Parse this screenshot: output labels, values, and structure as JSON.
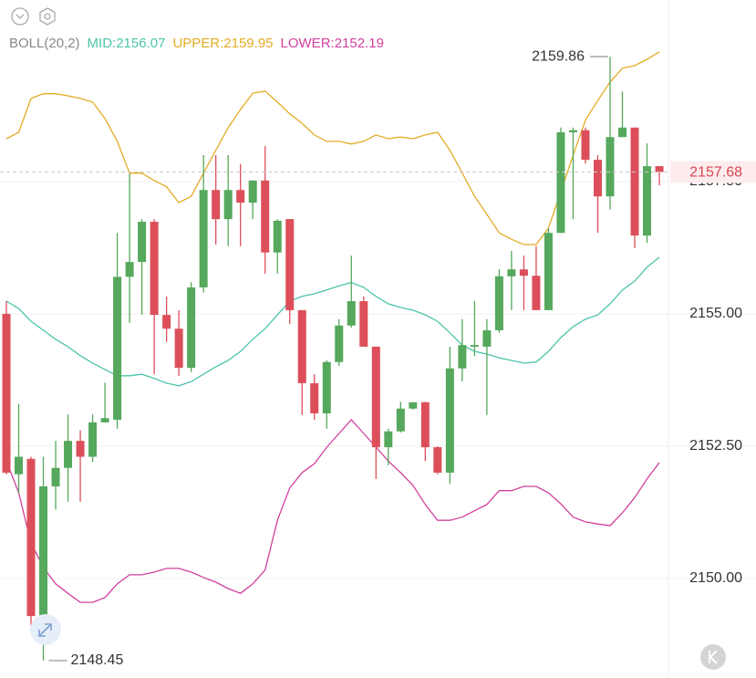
{
  "chart_data": {
    "type": "candlestick",
    "indicator": "BOLL(20,2)",
    "ylim": [
      2148.12,
      2160.93
    ],
    "yticks": [
      {
        "value": 2150,
        "label": "2150.00"
      },
      {
        "value": 2152.5,
        "label": "2152.50"
      },
      {
        "value": 2155,
        "label": "2155.00"
      },
      {
        "value": 2157.5,
        "label": "2157.50"
      }
    ],
    "grid": true,
    "up_color": "#55a85c",
    "down_color": "#dc4f5a",
    "open": [
      2155.0,
      2151.97,
      2152.26,
      2149.29,
      2151.74,
      2152.09,
      2152.6,
      2152.3,
      2152.95,
      2153.0,
      2155.7,
      2155.98,
      2156.74,
      2154.98,
      2154.72,
      2153.98,
      2155.5,
      2157.34,
      2156.79,
      2157.34,
      2157.1,
      2157.52,
      2156.16,
      2156.79,
      2155.07,
      2153.69,
      2153.12,
      2154.09,
      2154.78,
      2155.24,
      2154.38,
      2152.48,
      2152.78,
      2153.21,
      2153.33,
      2152.48,
      2152.0,
      2153.97,
      2154.38,
      2154.38,
      2154.69,
      2155.71,
      2155.84,
      2155.72,
      2155.07,
      2156.53,
      2158.43,
      2158.47,
      2157.91,
      2157.22,
      2158.34,
      2158.52,
      2156.48,
      2157.79
    ],
    "high": [
      2155.24,
      2153.3,
      2152.3,
      2152.3,
      2152.6,
      2153.1,
      2152.8,
      2153.1,
      2153.7,
      2156.53,
      2157.65,
      2156.79,
      2156.79,
      2155.33,
      2155.07,
      2155.6,
      2158.0,
      2158.0,
      2158.0,
      2157.83,
      2157.52,
      2158.17,
      2156.79,
      2156.79,
      2155.07,
      2153.86,
      2154.12,
      2154.9,
      2156.1,
      2155.33,
      2154.38,
      2152.83,
      2153.34,
      2153.33,
      2153.34,
      2152.5,
      2154.38,
      2154.9,
      2155.24,
      2154.9,
      2155.84,
      2156.19,
      2156.1,
      2156.28,
      2156.62,
      2158.52,
      2158.52,
      2158.52,
      2158.0,
      2159.86,
      2159.2,
      2158.52,
      2158.22,
      2157.79
    ],
    "low": [
      2151.97,
      2151.6,
      2149.1,
      2148.45,
      2151.3,
      2151.45,
      2151.45,
      2152.2,
      2152.95,
      2152.83,
      2154.83,
      2154.98,
      2153.86,
      2154.47,
      2153.83,
      2153.9,
      2155.4,
      2156.31,
      2156.28,
      2156.28,
      2156.79,
      2155.76,
      2155.76,
      2154.81,
      2153.09,
      2153.0,
      2152.83,
      2154.02,
      2154.74,
      2154.38,
      2151.88,
      2152.14,
      2152.76,
      2153.19,
      2152.22,
      2151.97,
      2151.79,
      2153.72,
      2154.2,
      2153.09,
      2154.64,
      2155.07,
      2155.07,
      2155.07,
      2155.07,
      2156.53,
      2156.79,
      2157.84,
      2156.53,
      2156.97,
      2158.34,
      2156.24,
      2156.34,
      2157.43
    ],
    "close": [
      2152.0,
      2152.3,
      2149.29,
      2151.74,
      2152.09,
      2152.6,
      2152.3,
      2152.95,
      2153.03,
      2155.7,
      2155.98,
      2156.74,
      2154.98,
      2154.72,
      2153.98,
      2155.5,
      2157.34,
      2156.79,
      2157.34,
      2157.1,
      2157.52,
      2156.16,
      2156.76,
      2155.07,
      2153.69,
      2153.12,
      2154.09,
      2154.78,
      2155.24,
      2154.38,
      2152.48,
      2152.78,
      2153.21,
      2153.33,
      2152.48,
      2152.0,
      2153.97,
      2154.41,
      2154.41,
      2154.69,
      2155.71,
      2155.84,
      2155.72,
      2155.07,
      2156.53,
      2158.43,
      2158.47,
      2157.91,
      2157.22,
      2158.34,
      2158.52,
      2156.48,
      2157.79,
      2157.68
    ],
    "series": [
      {
        "name": "MID:2156.07",
        "color": "#4cc4ab",
        "values": [
          2155.24,
          2155.1,
          2154.86,
          2154.69,
          2154.52,
          2154.38,
          2154.21,
          2154.07,
          2153.95,
          2153.83,
          2153.83,
          2153.86,
          2153.78,
          2153.69,
          2153.64,
          2153.72,
          2153.86,
          2154.0,
          2154.12,
          2154.29,
          2154.52,
          2154.72,
          2154.98,
          2155.24,
          2155.33,
          2155.38,
          2155.45,
          2155.53,
          2155.59,
          2155.5,
          2155.33,
          2155.19,
          2155.12,
          2155.07,
          2154.98,
          2154.86,
          2154.64,
          2154.41,
          2154.29,
          2154.24,
          2154.17,
          2154.12,
          2154.07,
          2154.09,
          2154.29,
          2154.55,
          2154.76,
          2154.9,
          2154.98,
          2155.19,
          2155.45,
          2155.62,
          2155.88,
          2156.07
        ]
      },
      {
        "name": "UPPER:2159.95",
        "color": "#e3ab25",
        "values": [
          2158.31,
          2158.43,
          2159.07,
          2159.16,
          2159.16,
          2159.12,
          2159.07,
          2159.0,
          2158.69,
          2158.26,
          2157.66,
          2157.66,
          2157.52,
          2157.4,
          2157.1,
          2157.22,
          2157.66,
          2158.09,
          2158.52,
          2158.86,
          2159.17,
          2159.21,
          2159.0,
          2158.78,
          2158.6,
          2158.38,
          2158.26,
          2158.26,
          2158.21,
          2158.26,
          2158.38,
          2158.31,
          2158.34,
          2158.31,
          2158.38,
          2158.43,
          2158.09,
          2157.66,
          2157.22,
          2156.88,
          2156.53,
          2156.41,
          2156.31,
          2156.31,
          2156.62,
          2157.31,
          2158.0,
          2158.66,
          2159.03,
          2159.38,
          2159.64,
          2159.69,
          2159.81,
          2159.95
        ]
      },
      {
        "name": "LOWER:2152.19",
        "color": "#d1409c",
        "values": [
          2152.22,
          2151.62,
          2150.67,
          2150.21,
          2149.9,
          2149.72,
          2149.55,
          2149.55,
          2149.64,
          2149.9,
          2150.07,
          2150.07,
          2150.12,
          2150.19,
          2150.19,
          2150.12,
          2150.02,
          2149.93,
          2149.81,
          2149.72,
          2149.9,
          2150.16,
          2151.1,
          2151.71,
          2152.0,
          2152.17,
          2152.48,
          2152.74,
          2153.0,
          2152.74,
          2152.48,
          2152.22,
          2152.0,
          2151.76,
          2151.4,
          2151.1,
          2151.1,
          2151.16,
          2151.28,
          2151.4,
          2151.66,
          2151.66,
          2151.74,
          2151.74,
          2151.62,
          2151.41,
          2151.16,
          2151.07,
          2151.03,
          2151.0,
          2151.24,
          2151.53,
          2151.88,
          2152.19
        ]
      }
    ],
    "annotations": {
      "high": 2159.86,
      "low": 2148.45,
      "last": 2157.68
    }
  }
}
